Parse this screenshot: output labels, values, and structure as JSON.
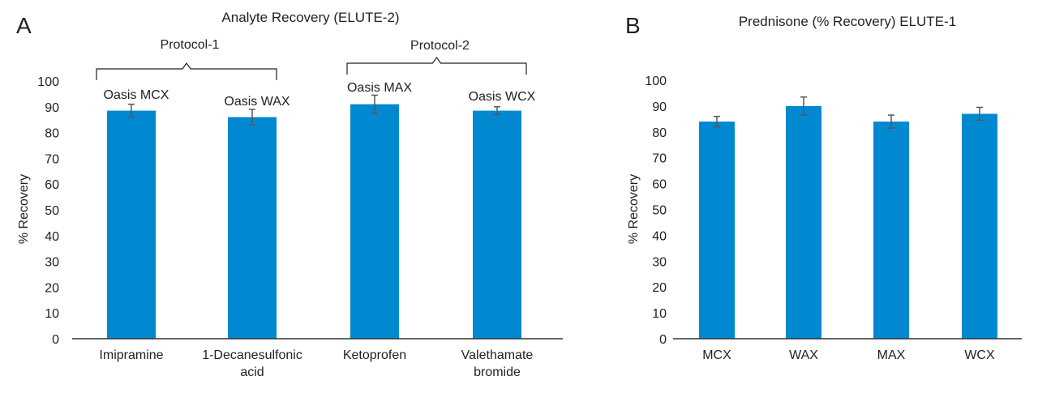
{
  "chart_data": [
    {
      "type": "bar",
      "panel_label": "A",
      "title": "Analyte Recovery (ELUTE-2)",
      "xlabel": "",
      "ylabel": "% Recovery",
      "ylim": [
        0,
        100
      ],
      "yticks": [
        0,
        10,
        20,
        30,
        40,
        50,
        60,
        70,
        80,
        90,
        100
      ],
      "categories": [
        [
          "Imipramine"
        ],
        [
          "1-Decanesulfonic",
          "acid"
        ],
        [
          "Ketoprofen"
        ],
        [
          "Valethamate",
          "bromide"
        ]
      ],
      "values": [
        88.5,
        86,
        91,
        88.5
      ],
      "errors": [
        2.5,
        3,
        3.5,
        1.5
      ],
      "bar_labels": [
        "Oasis  MCX",
        "Oasis  WAX",
        "Oasis  MAX",
        "Oasis  WCX"
      ],
      "groups": [
        {
          "label": "Protocol-1",
          "categories": [
            0,
            1
          ]
        },
        {
          "label": "Protocol-2",
          "categories": [
            2,
            3
          ]
        }
      ],
      "color": "#0088d1",
      "error_color": "#595959"
    },
    {
      "type": "bar",
      "panel_label": "B",
      "title": "Prednisone (% Recovery) ELUTE-1",
      "xlabel": "",
      "ylabel": "% Recovery",
      "ylim": [
        0,
        100
      ],
      "yticks": [
        0,
        10,
        20,
        30,
        40,
        50,
        60,
        70,
        80,
        90,
        100
      ],
      "categories": [
        [
          "MCX"
        ],
        [
          "WAX"
        ],
        [
          "MAX"
        ],
        [
          "WCX"
        ]
      ],
      "values": [
        84,
        90,
        84,
        87
      ],
      "errors": [
        2,
        3.5,
        2.5,
        2.5
      ],
      "color": "#0088d1",
      "error_color": "#595959"
    }
  ]
}
